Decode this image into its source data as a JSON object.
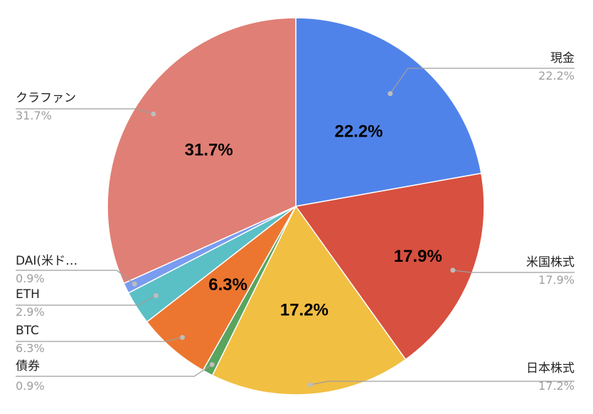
{
  "chart_data": {
    "type": "pie",
    "start_angle_deg": 0,
    "direction": "clockwise",
    "slices": [
      {
        "label": "現金",
        "value": 22.2,
        "value_text": "22.2%",
        "inner_text": "22.2%",
        "color": "#5083ea"
      },
      {
        "label": "米国株式",
        "value": 17.9,
        "value_text": "17.9%",
        "inner_text": "17.9%",
        "color": "#d85040"
      },
      {
        "label": "日本株式",
        "value": 17.2,
        "value_text": "17.2%",
        "inner_text": "17.2%",
        "color": "#f1bf42"
      },
      {
        "label": "債券",
        "value": 0.9,
        "value_text": "0.9%",
        "inner_text": "",
        "color": "#59a45e"
      },
      {
        "label": "BTC",
        "value": 6.3,
        "value_text": "6.3%",
        "inner_text": "6.3%",
        "color": "#ec7630"
      },
      {
        "label": "ETH",
        "value": 2.9,
        "value_text": "2.9%",
        "inner_text": "",
        "color": "#5bbfc6"
      },
      {
        "label": "DAI(米ド…",
        "value": 0.9,
        "value_text": "0.9%",
        "inner_text": "",
        "color": "#7a9cf0"
      },
      {
        "label": "クラファン",
        "value": 31.7,
        "value_text": "31.7%",
        "inner_text": "31.7%",
        "color": "#e07f75"
      }
    ]
  }
}
